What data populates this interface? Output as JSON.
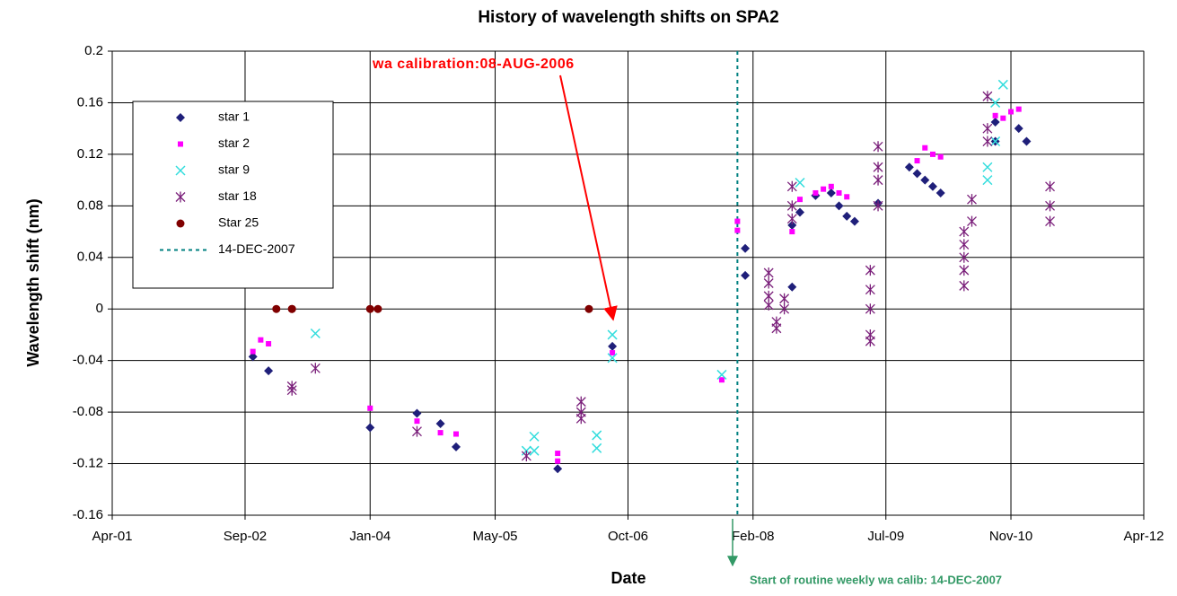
{
  "chart_data": {
    "type": "scatter",
    "title": "History of wavelength shifts on SPA2",
    "xlabel": "Date",
    "ylabel": "Wavelength shift (nm)",
    "xlim": [
      "2001-04",
      "2012-04"
    ],
    "xticks": [
      {
        "value": "2001-04",
        "label": "Apr-01"
      },
      {
        "value": "2002-09",
        "label": "Sep-02"
      },
      {
        "value": "2004-01",
        "label": "Jan-04"
      },
      {
        "value": "2005-05",
        "label": "May-05"
      },
      {
        "value": "2006-10",
        "label": "Oct-06"
      },
      {
        "value": "2008-02",
        "label": "Feb-08"
      },
      {
        "value": "2009-07",
        "label": "Jul-09"
      },
      {
        "value": "2010-11",
        "label": "Nov-10"
      },
      {
        "value": "2012-04",
        "label": "Apr-12"
      }
    ],
    "ylim": [
      -0.16,
      0.2
    ],
    "yticks": [
      -0.16,
      -0.12,
      -0.08,
      -0.04,
      0,
      0.04,
      0.08,
      0.12,
      0.16,
      0.2
    ],
    "grid": true,
    "series": [
      {
        "name": "star 1",
        "color": "#1f1f7a",
        "marker": "diamond",
        "x": [
          "2002-10",
          "2002-12",
          "2004-01",
          "2004-07",
          "2004-10",
          "2004-12",
          "2006-01",
          "2006-08",
          "2008-01",
          "2008-01",
          "2008-07",
          "2008-07",
          "2008-08",
          "2008-10",
          "2008-12",
          "2009-01",
          "2009-02",
          "2009-03",
          "2009-06",
          "2009-10",
          "2009-11",
          "2009-12",
          "2010-01",
          "2010-02",
          "2010-09",
          "2010-09",
          "2010-12",
          "2011-01"
        ],
        "values": [
          -0.037,
          -0.048,
          -0.092,
          -0.081,
          -0.089,
          -0.107,
          -0.124,
          -0.029,
          0.047,
          0.026,
          0.017,
          0.065,
          0.075,
          0.088,
          0.09,
          0.08,
          0.072,
          0.068,
          0.082,
          0.11,
          0.105,
          0.1,
          0.095,
          0.09,
          0.13,
          0.145,
          0.14,
          0.13
        ]
      },
      {
        "name": "star 2",
        "color": "#ff00ff",
        "marker": "square",
        "x": [
          "2002-10",
          "2002-11",
          "2002-12",
          "2004-01",
          "2004-07",
          "2004-10",
          "2004-12",
          "2006-01",
          "2006-01",
          "2006-08",
          "2007-10",
          "2007-12",
          "2007-12",
          "2008-07",
          "2008-08",
          "2008-10",
          "2008-11",
          "2008-12",
          "2009-01",
          "2009-02",
          "2009-11",
          "2009-12",
          "2010-01",
          "2010-02",
          "2010-09",
          "2010-10",
          "2010-11",
          "2010-12"
        ],
        "values": [
          -0.033,
          -0.024,
          -0.027,
          -0.077,
          -0.087,
          -0.096,
          -0.097,
          -0.112,
          -0.118,
          -0.034,
          -0.055,
          0.068,
          0.061,
          0.06,
          0.085,
          0.09,
          0.093,
          0.095,
          0.09,
          0.087,
          0.115,
          0.125,
          0.12,
          0.118,
          0.15,
          0.148,
          0.153,
          0.155
        ]
      },
      {
        "name": "star 9",
        "color": "#33dddd",
        "marker": "x",
        "x": [
          "2003-06",
          "2005-09",
          "2005-10",
          "2005-10",
          "2006-06",
          "2006-06",
          "2006-08",
          "2006-08",
          "2007-10",
          "2008-08",
          "2010-08",
          "2010-08",
          "2010-09",
          "2010-09",
          "2010-10"
        ],
        "values": [
          -0.019,
          -0.11,
          -0.11,
          -0.099,
          -0.098,
          -0.108,
          -0.02,
          -0.038,
          -0.051,
          0.098,
          0.1,
          0.11,
          0.13,
          0.16,
          0.174
        ]
      },
      {
        "name": "star 18",
        "color": "#7a1f7a",
        "marker": "asterisk",
        "x": [
          "2003-03",
          "2003-03",
          "2003-06",
          "2004-07",
          "2005-09",
          "2006-04",
          "2006-04",
          "2006-04",
          "2008-04",
          "2008-04",
          "2008-04",
          "2008-04",
          "2008-05",
          "2008-05",
          "2008-06",
          "2008-06",
          "2008-07",
          "2008-07",
          "2008-07",
          "2009-05",
          "2009-05",
          "2009-05",
          "2009-05",
          "2009-05",
          "2009-06",
          "2009-06",
          "2009-06",
          "2009-06",
          "2010-05",
          "2010-05",
          "2010-05",
          "2010-05",
          "2010-05",
          "2010-06",
          "2010-06",
          "2010-08",
          "2010-08",
          "2010-08",
          "2011-04",
          "2011-04",
          "2011-04"
        ],
        "values": [
          -0.06,
          -0.063,
          -0.046,
          -0.095,
          -0.114,
          -0.08,
          -0.072,
          -0.085,
          0.02,
          0.01,
          0.003,
          0.028,
          -0.01,
          -0.015,
          0,
          0.008,
          0.07,
          0.08,
          0.095,
          0.03,
          0,
          -0.02,
          -0.025,
          0.015,
          0.08,
          0.1,
          0.11,
          0.126,
          0.05,
          0.04,
          0.018,
          0.06,
          0.03,
          0.068,
          0.085,
          0.13,
          0.165,
          0.14,
          0.095,
          0.08,
          0.068
        ]
      },
      {
        "name": "Star 25",
        "color": "#800000",
        "marker": "circle",
        "x": [
          "2003-01",
          "2003-03",
          "2003-03",
          "2004-01",
          "2004-02",
          "2006-05"
        ],
        "values": [
          0,
          0,
          0,
          0,
          0,
          0
        ]
      }
    ],
    "vlines": [
      {
        "name": "14-DEC-2007",
        "x": "2007-12",
        "color": "#008080"
      }
    ],
    "annotations": [
      {
        "text": "wa calibration:08-AUG-2006",
        "color": "#ff0000"
      },
      {
        "text": "Start of routine weekly wa calib: 14-DEC-2007",
        "color": "#339966"
      }
    ]
  }
}
